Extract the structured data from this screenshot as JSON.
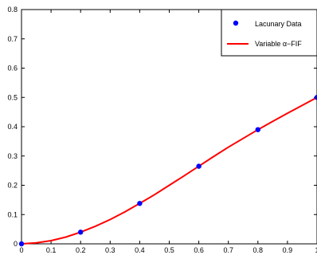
{
  "chart_data": {
    "type": "line",
    "title": "",
    "xlabel": "",
    "ylabel": "",
    "xlim": [
      0,
      1
    ],
    "ylim": [
      0,
      0.8
    ],
    "xticks": [
      "0",
      "0.1",
      "0.2",
      "0.3",
      "0.4",
      "0.5",
      "0.6",
      "0.7",
      "0.8",
      "0.9",
      "1"
    ],
    "yticks": [
      "0",
      "0.1",
      "0.2",
      "0.3",
      "0.4",
      "0.5",
      "0.6",
      "0.7",
      "0.8"
    ],
    "grid": false,
    "legend_position": "top-right",
    "series": [
      {
        "name": "Lacunary Data",
        "kind": "scatter",
        "color": "#0000ff",
        "x": [
          0,
          0.2,
          0.4,
          0.6,
          0.8,
          1.0
        ],
        "y": [
          0,
          0.04,
          0.138,
          0.265,
          0.39,
          0.5
        ]
      },
      {
        "name": "Variable α−FIF",
        "kind": "line",
        "color": "#ff0000",
        "x": [
          0,
          0.05,
          0.1,
          0.15,
          0.2,
          0.25,
          0.3,
          0.35,
          0.4,
          0.45,
          0.5,
          0.55,
          0.6,
          0.65,
          0.7,
          0.75,
          0.8,
          0.85,
          0.9,
          0.95,
          1.0
        ],
        "y": [
          0,
          0.0035,
          0.011,
          0.023,
          0.04,
          0.06,
          0.083,
          0.109,
          0.138,
          0.168,
          0.2,
          0.232,
          0.265,
          0.298,
          0.33,
          0.36,
          0.39,
          0.418,
          0.446,
          0.473,
          0.5
        ]
      }
    ]
  }
}
